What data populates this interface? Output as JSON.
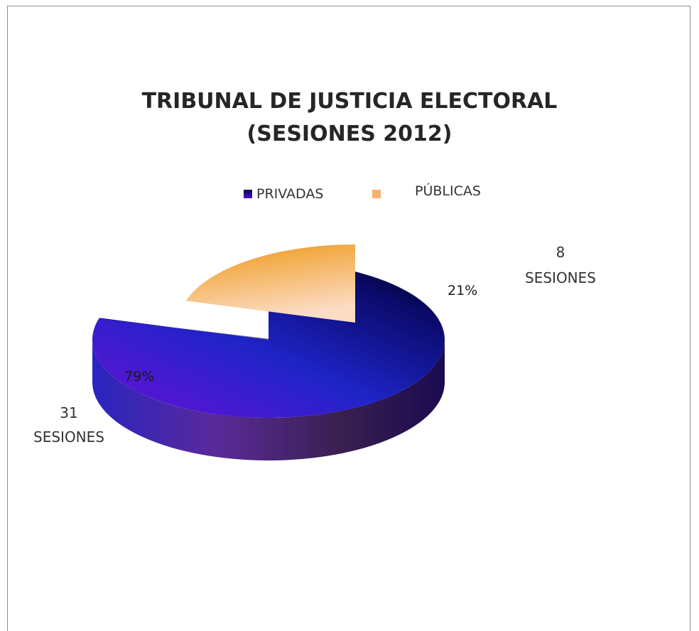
{
  "chart_data": {
    "type": "pie",
    "style": "3d-exploded",
    "title": [
      "TRIBUNAL DE JUSTICIA ELECTORAL",
      "(SESIONES 2012)"
    ],
    "legend": {
      "position": "top"
    },
    "slices": [
      {
        "label": "PRIVADAS",
        "value": 31,
        "percent_label": "79%",
        "data_label": [
          "31",
          "SESIONES"
        ],
        "color": "#1b1fb8"
      },
      {
        "label": "PÚBLICAS",
        "value": 8,
        "percent_label": "21%",
        "data_label": [
          "8",
          "SESIONES"
        ],
        "color": "#f2a64a"
      }
    ]
  }
}
